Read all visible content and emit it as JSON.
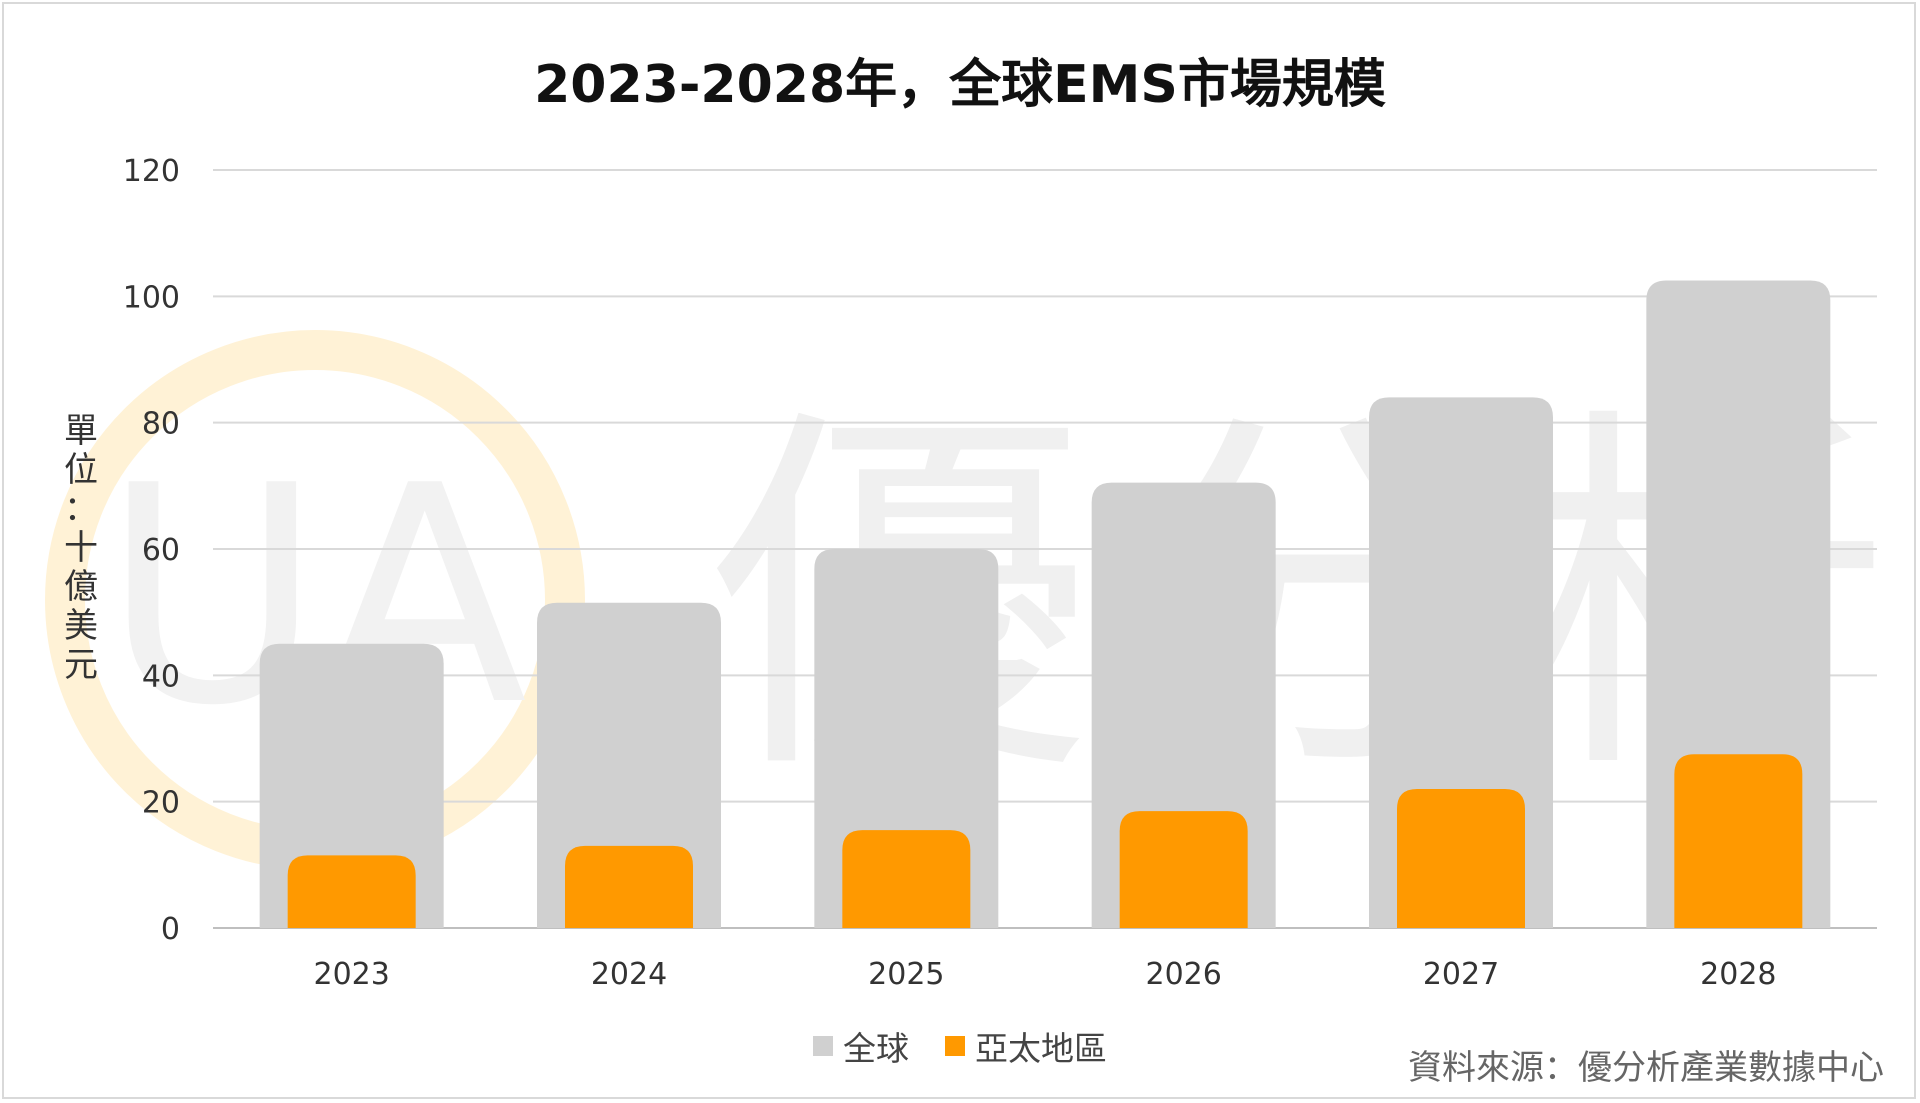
{
  "chart_data": {
    "type": "bar",
    "title": "2023-2028年，全球EMS市場規模",
    "ylabel": "單位：十億美元",
    "xlabel": "",
    "categories": [
      "2023",
      "2024",
      "2025",
      "2026",
      "2027",
      "2028"
    ],
    "series": [
      {
        "name": "全球",
        "values": [
          45,
          51.5,
          60,
          70.5,
          84,
          102.5
        ],
        "color": "#d0d0d0"
      },
      {
        "name": "亞太地區",
        "values": [
          11.5,
          13,
          15.5,
          18.5,
          22,
          27.5
        ],
        "color": "#ff9900"
      }
    ],
    "ylim": [
      0,
      120
    ],
    "yticks": [
      "0",
      "20",
      "40",
      "60",
      "80",
      "100",
      "120"
    ],
    "grid": true,
    "legend_position": "bottom",
    "bar_layout": "overlapped"
  },
  "watermark": {
    "text": "優分析",
    "logo": "UA"
  },
  "source_note": "資料來源：優分析產業數據中心"
}
